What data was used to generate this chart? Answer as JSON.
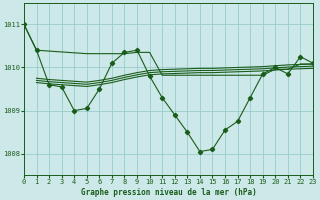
{
  "bg_color": "#cce8e8",
  "grid_color": "#99cccc",
  "line_color": "#1a5c1a",
  "title": "Graphe pression niveau de la mer (hPa)",
  "xlim": [
    0,
    23
  ],
  "ylim": [
    1007.5,
    1011.5
  ],
  "yticks": [
    1008,
    1009,
    1010,
    1011
  ],
  "xticks": [
    0,
    1,
    2,
    3,
    4,
    5,
    6,
    7,
    8,
    9,
    10,
    11,
    12,
    13,
    14,
    15,
    16,
    17,
    18,
    19,
    20,
    21,
    22,
    23
  ],
  "series_main_x": [
    0,
    1,
    2,
    3,
    4,
    5,
    6,
    7,
    8,
    9,
    10,
    11,
    12,
    13,
    14,
    15,
    16,
    17,
    18,
    19,
    20,
    21,
    22,
    23
  ],
  "series_main_y": [
    1011.0,
    1010.4,
    1009.6,
    1009.55,
    1009.0,
    1009.05,
    1009.5,
    1010.1,
    1010.35,
    1010.4,
    1009.8,
    1009.3,
    1008.9,
    1008.5,
    1008.05,
    1008.1,
    1008.55,
    1008.75,
    1009.3,
    1009.85,
    1010.0,
    1009.85,
    1010.25,
    1010.1
  ],
  "series_flat1_x": [
    1,
    2,
    3,
    4,
    5,
    6,
    7,
    8,
    9,
    10,
    11,
    12,
    13,
    14,
    15,
    16,
    17,
    18,
    19,
    20,
    21,
    22,
    23
  ],
  "series_flat1_y": [
    1009.65,
    1009.62,
    1009.6,
    1009.58,
    1009.56,
    1009.6,
    1009.65,
    1009.72,
    1009.78,
    1009.83,
    1009.85,
    1009.86,
    1009.87,
    1009.88,
    1009.88,
    1009.89,
    1009.9,
    1009.91,
    1009.92,
    1009.94,
    1009.96,
    1009.97,
    1009.98
  ],
  "series_flat2_x": [
    1,
    2,
    3,
    4,
    5,
    6,
    7,
    8,
    9,
    10,
    11,
    12,
    13,
    14,
    15,
    16,
    17,
    18,
    19,
    20,
    21,
    22,
    23
  ],
  "series_flat2_y": [
    1009.7,
    1009.67,
    1009.65,
    1009.63,
    1009.61,
    1009.65,
    1009.7,
    1009.77,
    1009.83,
    1009.88,
    1009.9,
    1009.91,
    1009.92,
    1009.93,
    1009.93,
    1009.94,
    1009.95,
    1009.96,
    1009.97,
    1009.99,
    1010.01,
    1010.02,
    1010.03
  ],
  "series_flat3_x": [
    1,
    2,
    3,
    4,
    5,
    6,
    7,
    8,
    9,
    10,
    11,
    12,
    13,
    14,
    15,
    16,
    17,
    18,
    19,
    20,
    21,
    22,
    23
  ],
  "series_flat3_y": [
    1009.75,
    1009.72,
    1009.7,
    1009.68,
    1009.66,
    1009.7,
    1009.75,
    1009.82,
    1009.88,
    1009.93,
    1009.95,
    1009.96,
    1009.97,
    1009.98,
    1009.98,
    1009.99,
    1010.0,
    1010.01,
    1010.02,
    1010.04,
    1010.06,
    1010.07,
    1010.08
  ],
  "series_top_x": [
    0,
    1,
    2,
    3,
    4,
    5,
    6,
    7,
    8,
    9,
    10,
    11,
    12,
    13,
    14,
    15,
    16,
    17,
    18,
    19,
    20,
    21,
    22,
    23
  ],
  "series_top_y": [
    1011.0,
    1010.4,
    1010.38,
    1010.36,
    1010.34,
    1010.32,
    1010.32,
    1010.32,
    1010.32,
    1010.35,
    1010.35,
    1009.82,
    1009.82,
    1009.82,
    1009.82,
    1009.82,
    1009.82,
    1009.82,
    1009.82,
    1009.82,
    1009.96,
    1009.96,
    1010.08,
    1010.08
  ]
}
